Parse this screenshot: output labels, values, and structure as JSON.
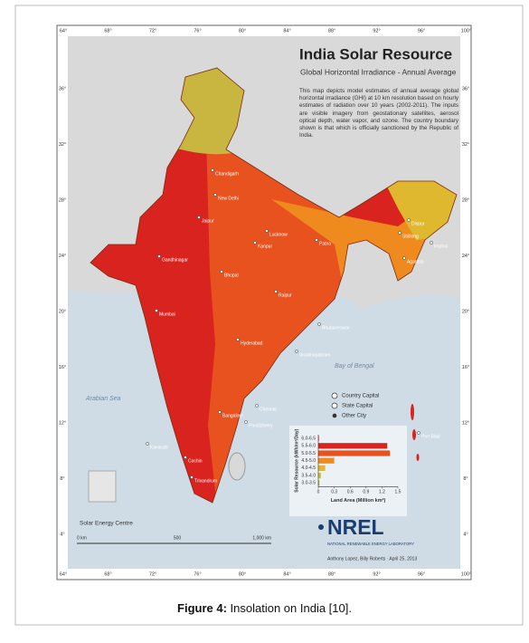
{
  "map": {
    "title": "India Solar Resource",
    "subtitle": "Global Horizontal Irradiance - Annual Average",
    "description": "This map depicts model estimates of annual average global horizontal irradiance (GHI) at 10 km resolution based on hourly estimates of radiation over 10 years (2002-2011). The inputs are visible imagery from geostationary satellites, aerosol optical depth, water vapor, and ozone. The country boundary shown is that which is officially sanctioned by the Republic of India.",
    "longitude_labels": [
      "64°",
      "68°",
      "72°",
      "76°",
      "80°",
      "84°",
      "88°",
      "92°",
      "96°",
      "100°"
    ],
    "latitude_labels": [
      "36°",
      "32°",
      "28°",
      "24°",
      "20°",
      "16°",
      "12°",
      "8°",
      "4°"
    ],
    "seas": [
      "Arabian Sea",
      "Bay of Bengal"
    ],
    "cities": [
      "Chandigarh",
      "New Delhi",
      "Jaipur",
      "Lucknow",
      "Kanpur",
      "Patna",
      "Dispur",
      "Shillong",
      "Imphal",
      "Agartala",
      "Gandhinagar",
      "Bhopal",
      "Raipur",
      "Mumbai",
      "Bhubaneswar",
      "Hyderabad",
      "Visakhapatnam",
      "Bangalore",
      "Chennai",
      "Pondicherry",
      "Kavaratti",
      "Cochin",
      "Trivandrum",
      "Port Blair"
    ],
    "legend": [
      "Country Capital",
      "State Capital",
      "Other City"
    ],
    "logo_caption": "Solar Energy Centre",
    "scale_labels": [
      "0 km",
      "500",
      "1,000 km"
    ],
    "nrel_name": "NREL",
    "nrel_org": "NATIONAL RENEWABLE ENERGY LABORATORY",
    "credit": "Anthony Lopez, Billy Roberts · April 25, 2013"
  },
  "chart_data": {
    "type": "bar",
    "orientation": "horizontal",
    "y_label": "Solar Resource (kWh/m²/Day)",
    "x_label": "Land Area (Million km²)",
    "categories": [
      "6.0-6.5",
      "5.5-6.0",
      "5.0-5.5",
      "4.5-5.0",
      "4.0-4.5",
      "3.5-4.0",
      "3.0-3.5"
    ],
    "values": [
      0.01,
      1.3,
      1.35,
      0.3,
      0.13,
      0.05,
      0.02
    ],
    "colors": [
      "#a8141a",
      "#d8231f",
      "#e8521f",
      "#ef8a1e",
      "#e6b52d",
      "#c9c04a",
      "#a9b35a"
    ],
    "xlim": [
      0,
      1.5
    ],
    "xticks": [
      0,
      0.3,
      0.6,
      0.9,
      1.2,
      1.5
    ]
  },
  "caption": {
    "label": "Figure 4:",
    "text": "Insolation on India [10]."
  }
}
